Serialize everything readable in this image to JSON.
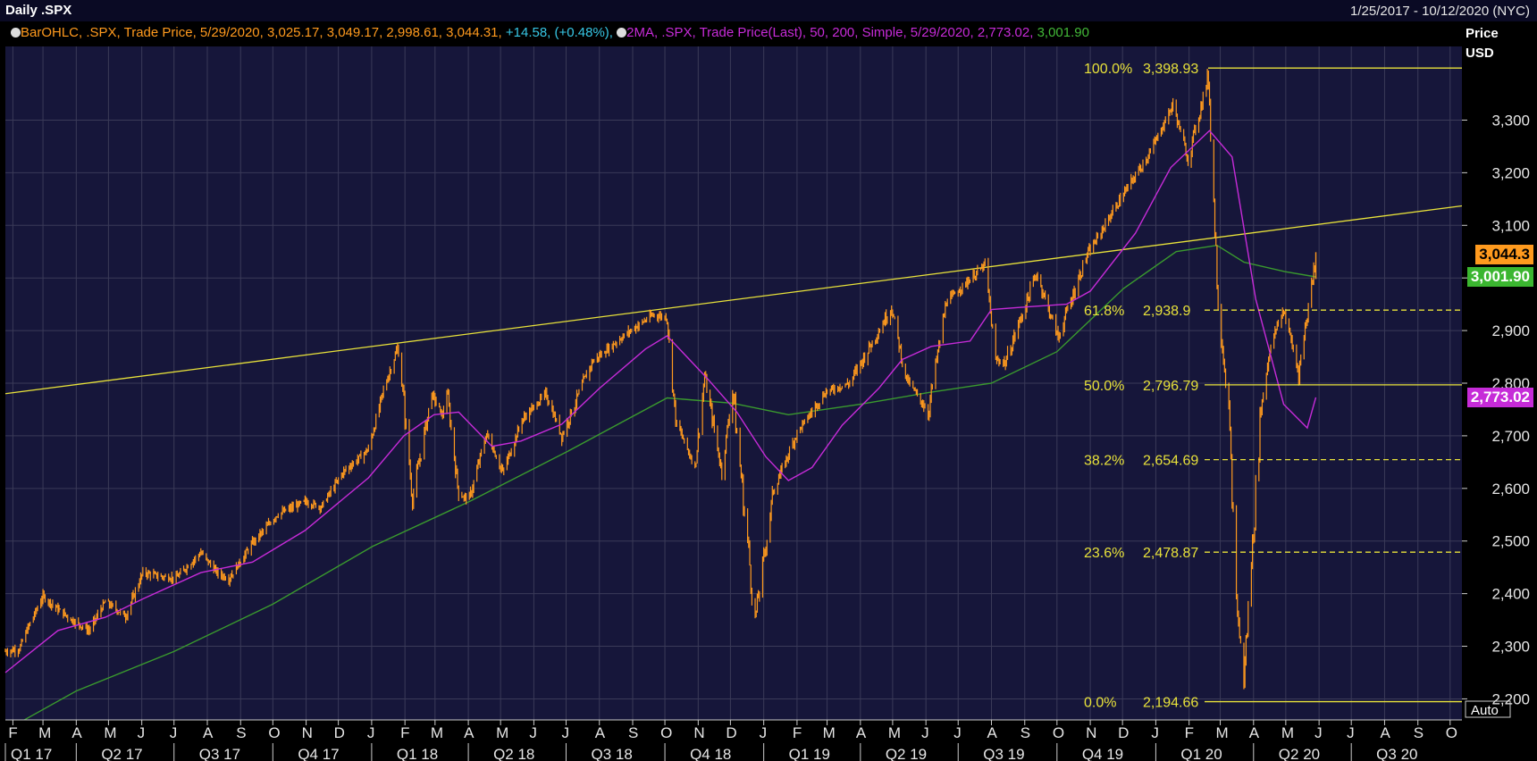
{
  "header": {
    "title": "Daily .SPX",
    "date_range": "1/25/2017 - 10/12/2020 (NYC)"
  },
  "legend": {
    "bar_study": "BarOHLC, .SPX, Trade Price, 5/29/2020, 3,025.17, 3,049.17, 2,998.61, 3,044.31,",
    "bar_change": "+14.58, (+0.48%),",
    "ma_study": "2MA, .SPX, Trade Price(Last),  50, 200, Simple, 5/29/2020, 2,773.02,",
    "ma_200_value": "3,001.90"
  },
  "colors": {
    "background": "#16163a",
    "grid": "#3a3a58",
    "price_bars": "#ff9a1e",
    "ma50": "#c62bd8",
    "ma200": "#3a9a2e",
    "fib_lines": "#e8e23a",
    "trendline": "#e8e23a",
    "change_text": "#37c7e6"
  },
  "axis": {
    "price_label": "Price",
    "currency": "USD",
    "auto_label": "Auto",
    "y_ticks": [
      "3,300",
      "3,200",
      "3,100",
      "3,000",
      "2,900",
      "2,800",
      "2,700",
      "2,600",
      "2,500",
      "2,400",
      "2,300",
      "2,200"
    ],
    "month_labels": [
      "F",
      "M",
      "A",
      "M",
      "J",
      "J",
      "A",
      "S",
      "O",
      "N",
      "D",
      "J",
      "F",
      "M",
      "A",
      "M",
      "J",
      "J",
      "A",
      "S",
      "O",
      "N",
      "D",
      "J",
      "F",
      "M",
      "A",
      "M",
      "J",
      "J",
      "A",
      "S",
      "O",
      "N",
      "D",
      "J",
      "F",
      "M",
      "A",
      "M",
      "J",
      "J",
      "A",
      "S",
      "O"
    ],
    "quarter_labels": [
      "Q1 17",
      "Q2 17",
      "Q3 17",
      "Q4 17",
      "Q1 18",
      "Q2 18",
      "Q3 18",
      "Q4 18",
      "Q1 19",
      "Q2 19",
      "Q3 19",
      "Q4 19",
      "Q1 20",
      "Q2 20",
      "Q3 20"
    ]
  },
  "tags": {
    "last_price": "3,044.3",
    "ma200": "3,001.90",
    "ma50": "2,773.02"
  },
  "fib_levels": [
    {
      "pct": "100.0%",
      "value": "3,398.93",
      "price": 3398.93,
      "style": "solid"
    },
    {
      "pct": "61.8%",
      "value": "2,938.9",
      "price": 2938.9,
      "style": "dashed"
    },
    {
      "pct": "50.0%",
      "value": "2,796.79",
      "price": 2796.79,
      "style": "solid"
    },
    {
      "pct": "38.2%",
      "value": "2,654.69",
      "price": 2654.69,
      "style": "dashed"
    },
    {
      "pct": "23.6%",
      "value": "2,478.87",
      "price": 2478.87,
      "style": "dashed"
    },
    {
      "pct": "0.0%",
      "value": "2,194.66",
      "price": 2194.66,
      "style": "solid"
    }
  ],
  "chart_data": {
    "type": "line",
    "title": "Daily .SPX",
    "ylabel": "Price",
    "yunit": "USD",
    "ylim": [
      2160,
      3440
    ],
    "xrange": [
      "2017-01-25",
      "2020-10-12"
    ],
    "grid": true,
    "price_axis_side": "right",
    "series": [
      {
        "name": "BarOHLC .SPX",
        "style": "ohlc-bars",
        "points": [
          [
            "2017-01-25",
            2290
          ],
          [
            "2017-02-07",
            2295
          ],
          [
            "2017-02-15",
            2335
          ],
          [
            "2017-03-01",
            2395
          ],
          [
            "2017-03-15",
            2370
          ],
          [
            "2017-03-28",
            2350
          ],
          [
            "2017-04-13",
            2330
          ],
          [
            "2017-04-28",
            2385
          ],
          [
            "2017-05-17",
            2357
          ],
          [
            "2017-06-02",
            2440
          ],
          [
            "2017-06-20",
            2432
          ],
          [
            "2017-07-03",
            2430
          ],
          [
            "2017-07-26",
            2478
          ],
          [
            "2017-08-10",
            2440
          ],
          [
            "2017-08-21",
            2428
          ],
          [
            "2017-09-12",
            2496
          ],
          [
            "2017-10-05",
            2550
          ],
          [
            "2017-10-31",
            2575
          ],
          [
            "2017-11-15",
            2565
          ],
          [
            "2017-12-05",
            2630
          ],
          [
            "2017-12-29",
            2674
          ],
          [
            "2018-01-12",
            2786
          ],
          [
            "2018-01-26",
            2872
          ],
          [
            "2018-02-08",
            2581
          ],
          [
            "2018-02-26",
            2780
          ],
          [
            "2018-03-08",
            2738
          ],
          [
            "2018-03-12",
            2786
          ],
          [
            "2018-03-23",
            2588
          ],
          [
            "2018-04-02",
            2580
          ],
          [
            "2018-04-18",
            2705
          ],
          [
            "2018-05-03",
            2630
          ],
          [
            "2018-05-21",
            2730
          ],
          [
            "2018-06-12",
            2780
          ],
          [
            "2018-06-27",
            2700
          ],
          [
            "2018-07-25",
            2840
          ],
          [
            "2018-08-28",
            2897
          ],
          [
            "2018-09-20",
            2930
          ],
          [
            "2018-10-03",
            2925
          ],
          [
            "2018-10-11",
            2728
          ],
          [
            "2018-10-29",
            2640
          ],
          [
            "2018-11-07",
            2813
          ],
          [
            "2018-11-23",
            2632
          ],
          [
            "2018-12-03",
            2790
          ],
          [
            "2018-12-24",
            2351
          ],
          [
            "2019-01-10",
            2595
          ],
          [
            "2019-02-01",
            2706
          ],
          [
            "2019-02-28",
            2784
          ],
          [
            "2019-03-22",
            2800
          ],
          [
            "2019-04-30",
            2945
          ],
          [
            "2019-05-13",
            2812
          ],
          [
            "2019-06-03",
            2744
          ],
          [
            "2019-06-20",
            2954
          ],
          [
            "2019-07-26",
            3025
          ],
          [
            "2019-08-05",
            2844
          ],
          [
            "2019-08-14",
            2840
          ],
          [
            "2019-09-12",
            3009
          ],
          [
            "2019-10-02",
            2887
          ],
          [
            "2019-10-28",
            3039
          ],
          [
            "2019-11-26",
            3140
          ],
          [
            "2019-12-27",
            3240
          ],
          [
            "2020-01-17",
            3330
          ],
          [
            "2020-01-31",
            3225
          ],
          [
            "2020-02-19",
            3386
          ],
          [
            "2020-02-28",
            2954
          ],
          [
            "2020-03-09",
            2746
          ],
          [
            "2020-03-16",
            2386
          ],
          [
            "2020-03-23",
            2237
          ],
          [
            "2020-04-08",
            2750
          ],
          [
            "2020-04-17",
            2875
          ],
          [
            "2020-04-29",
            2940
          ],
          [
            "2020-05-13",
            2820
          ],
          [
            "2020-05-29",
            3044
          ]
        ]
      },
      {
        "name": "MA 50",
        "style": "line",
        "points": [
          [
            "2017-01-25",
            2250
          ],
          [
            "2017-03-15",
            2330
          ],
          [
            "2017-04-28",
            2355
          ],
          [
            "2017-06-02",
            2390
          ],
          [
            "2017-07-26",
            2440
          ],
          [
            "2017-09-12",
            2460
          ],
          [
            "2017-10-31",
            2520
          ],
          [
            "2017-12-29",
            2620
          ],
          [
            "2018-01-31",
            2700
          ],
          [
            "2018-02-28",
            2740
          ],
          [
            "2018-03-23",
            2745
          ],
          [
            "2018-04-23",
            2680
          ],
          [
            "2018-05-20",
            2690
          ],
          [
            "2018-06-27",
            2722
          ],
          [
            "2018-08-01",
            2790
          ],
          [
            "2018-09-13",
            2865
          ],
          [
            "2018-10-03",
            2890
          ],
          [
            "2018-11-09",
            2810
          ],
          [
            "2018-12-07",
            2745
          ],
          [
            "2019-01-03",
            2660
          ],
          [
            "2019-01-24",
            2615
          ],
          [
            "2019-02-15",
            2640
          ],
          [
            "2019-03-15",
            2720
          ],
          [
            "2019-04-18",
            2790
          ],
          [
            "2019-05-10",
            2845
          ],
          [
            "2019-06-06",
            2870
          ],
          [
            "2019-07-12",
            2880
          ],
          [
            "2019-08-01",
            2940
          ],
          [
            "2019-09-03",
            2945
          ],
          [
            "2019-10-10",
            2950
          ],
          [
            "2019-11-01",
            2975
          ],
          [
            "2019-12-13",
            3085
          ],
          [
            "2020-01-15",
            3210
          ],
          [
            "2020-02-20",
            3280
          ],
          [
            "2020-03-12",
            3230
          ],
          [
            "2020-04-03",
            2960
          ],
          [
            "2020-04-29",
            2760
          ],
          [
            "2020-05-21",
            2715
          ],
          [
            "2020-05-29",
            2773
          ]
        ]
      },
      {
        "name": "MA 200",
        "style": "line",
        "points": [
          [
            "2017-01-25",
            2140
          ],
          [
            "2017-04-01",
            2215
          ],
          [
            "2017-07-01",
            2290
          ],
          [
            "2017-10-01",
            2380
          ],
          [
            "2018-01-02",
            2490
          ],
          [
            "2018-04-02",
            2575
          ],
          [
            "2018-07-02",
            2670
          ],
          [
            "2018-10-03",
            2772
          ],
          [
            "2018-12-03",
            2762
          ],
          [
            "2019-01-24",
            2740
          ],
          [
            "2019-04-01",
            2760
          ],
          [
            "2019-06-03",
            2782
          ],
          [
            "2019-08-01",
            2800
          ],
          [
            "2019-10-01",
            2860
          ],
          [
            "2019-12-02",
            2980
          ],
          [
            "2020-01-20",
            3050
          ],
          [
            "2020-02-27",
            3062
          ],
          [
            "2020-03-23",
            3030
          ],
          [
            "2020-04-30",
            3012
          ],
          [
            "2020-05-29",
            3002
          ]
        ]
      }
    ],
    "trendline": {
      "from": [
        "2017-01-25",
        2780
      ],
      "to": [
        "2020-10-12",
        3137
      ]
    }
  }
}
